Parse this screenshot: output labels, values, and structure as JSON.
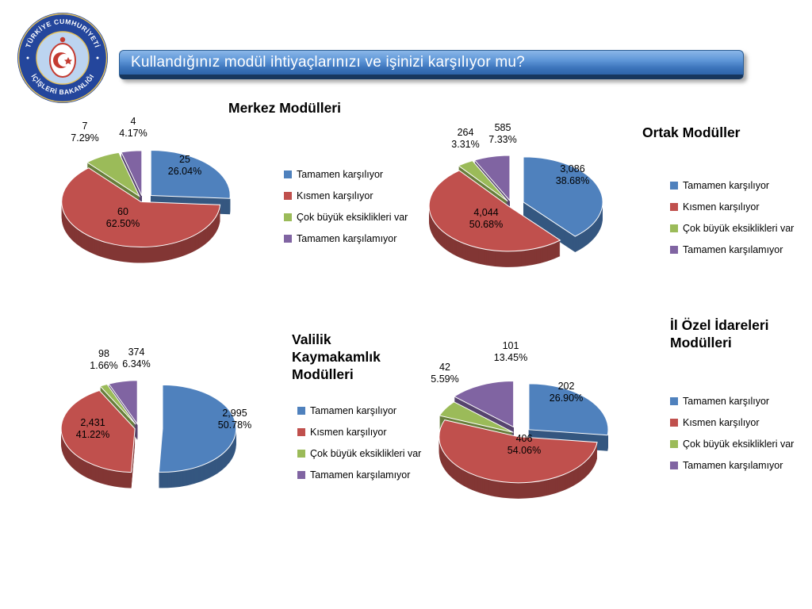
{
  "slide": {
    "title": "Kullandığınız modül ihtiyaçlarınızı ve işinizi karşılıyor mu?"
  },
  "logo": {
    "ring_top_text": "TÜRKİYE CUMHURİYETİ",
    "ring_bottom_text": "İÇİŞLERİ BAKANLIĞI"
  },
  "series_colors": [
    "#4f81bd",
    "#c0504d",
    "#9bbb59",
    "#8064a2"
  ],
  "legend_labels": [
    "Tamamen karşılıyor",
    "Kısmen karşılıyor",
    "Çok büyük eksiklikleri var",
    "Tamamen karşılamıyor"
  ],
  "chart_data": [
    {
      "type": "pie",
      "style": "3d-exploded",
      "title": "Merkez Modülleri",
      "categories": [
        "Tamamen karşılıyor",
        "Kısmen karşılıyor",
        "Çok büyük eksiklikleri var",
        "Tamamen karşılamıyor"
      ],
      "values": [
        25,
        60,
        7,
        4
      ],
      "value_labels": [
        "25",
        "60",
        "7",
        "4"
      ],
      "percent_labels": [
        "26.04%",
        "62.50%",
        "7.29%",
        "4.17%"
      ],
      "colors": [
        "#4f81bd",
        "#c0504d",
        "#9bbb59",
        "#8064a2"
      ],
      "legend_position": "right"
    },
    {
      "type": "pie",
      "style": "3d-exploded",
      "title": "Ortak Modüller",
      "categories": [
        "Tamamen karşılıyor",
        "Kısmen karşılıyor",
        "Çok büyük eksiklikleri var",
        "Tamamen karşılamıyor"
      ],
      "values": [
        3086,
        4044,
        264,
        585
      ],
      "value_labels": [
        "3,086",
        "4,044",
        "264",
        "585"
      ],
      "percent_labels": [
        "38.68%",
        "50.68%",
        "3.31%",
        "7.33%"
      ],
      "colors": [
        "#4f81bd",
        "#c0504d",
        "#9bbb59",
        "#8064a2"
      ],
      "legend_position": "right"
    },
    {
      "type": "pie",
      "style": "3d-exploded",
      "title": "Valilik Kaymakamlık Modülleri",
      "categories": [
        "Tamamen karşılıyor",
        "Kısmen karşılıyor",
        "Çok büyük eksiklikleri var",
        "Tamamen karşılamıyor"
      ],
      "values": [
        2995,
        2431,
        98,
        374
      ],
      "value_labels": [
        "2,995",
        "2,431",
        "98",
        "374"
      ],
      "percent_labels": [
        "50.78%",
        "41.22%",
        "1.66%",
        "6.34%"
      ],
      "colors": [
        "#4f81bd",
        "#c0504d",
        "#9bbb59",
        "#8064a2"
      ],
      "legend_position": "right"
    },
    {
      "type": "pie",
      "style": "3d-exploded",
      "title": "İl Özel İdareleri Modülleri",
      "categories": [
        "Tamamen karşılıyor",
        "Kısmen karşılıyor",
        "Çok büyük eksiklikleri var",
        "Tamamen karşılamıyor"
      ],
      "values": [
        202,
        406,
        42,
        101
      ],
      "value_labels": [
        "202",
        "406",
        "42",
        "101"
      ],
      "percent_labels": [
        "26.90%",
        "54.06%",
        "5.59%",
        "13.45%"
      ],
      "colors": [
        "#4f81bd",
        "#c0504d",
        "#9bbb59",
        "#8064a2"
      ],
      "legend_position": "right"
    }
  ]
}
